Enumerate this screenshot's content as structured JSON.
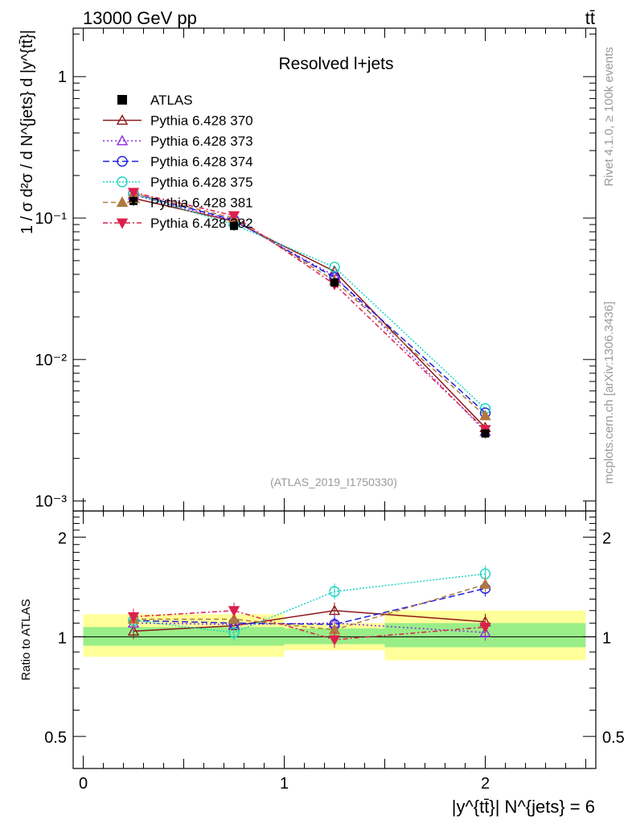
{
  "header": {
    "energy_label": "13000 GeV pp",
    "process_label": "tt̄",
    "panel_title": "Resolved l+jets",
    "side_rivet": "Rivet 4.1.0, ≥ 100k events",
    "side_mcplots": "mcplots.cern.ch [arXiv:1306.3436]",
    "analysis_id": "(ATLAS_2019_I1750330)"
  },
  "axes": {
    "ylabel_main": "1 / σ d²σ / d N^{jets} d |y^{tt̄}|",
    "ylabel_ratio": "Ratio to ATLAS",
    "xlabel": "|y^{tt̄}| N^{jets} = 6",
    "main_ticks": [
      "10⁻³",
      "10⁻²",
      "10⁻¹",
      "1"
    ],
    "ratio_ticks": [
      "0.5",
      "1",
      "2"
    ],
    "x_ticks": [
      "0",
      "1",
      "2"
    ]
  },
  "chart_data": {
    "type": "line",
    "x_label": "|y^{tt̄}| N^{jets} = 6",
    "y_scale": "log",
    "xlim": [
      -0.05,
      2.55
    ],
    "ylim": [
      0.00085,
      2.2
    ],
    "ratio_ylim": [
      0.4,
      2.4
    ],
    "bin_edges": [
      0,
      0.5,
      1.0,
      1.5,
      2.5
    ],
    "x": [
      0.25,
      0.75,
      1.25,
      2.0
    ],
    "reference": {
      "name": "ATLAS",
      "values": [
        0.132,
        0.088,
        0.035,
        0.003
      ],
      "ratio_band_inner": [
        [
          0.94,
          1.07
        ],
        [
          0.94,
          1.07
        ],
        [
          0.95,
          1.06
        ],
        [
          0.93,
          1.1
        ]
      ],
      "ratio_band_outer": [
        [
          0.87,
          1.17
        ],
        [
          0.87,
          1.17
        ],
        [
          0.91,
          1.1
        ],
        [
          0.85,
          1.2
        ]
      ]
    },
    "series": [
      {
        "name": "Pythia 6.428 370",
        "color": "#8b1a1a",
        "dash": "",
        "marker": "triangle-up-open",
        "values": [
          0.138,
          0.095,
          0.042,
          0.0033
        ],
        "ratio": [
          1.04,
          1.08,
          1.2,
          1.11
        ]
      },
      {
        "name": "Pythia 6.428 373",
        "color": "#8a2be2",
        "dash": "2,3",
        "marker": "triangle-up-open",
        "values": [
          0.145,
          0.096,
          0.039,
          0.0031
        ],
        "ratio": [
          1.1,
          1.09,
          1.1,
          1.03
        ]
      },
      {
        "name": "Pythia 6.428 374",
        "color": "#1f1fdd",
        "dash": "8,4",
        "marker": "circle-open",
        "values": [
          0.149,
          0.097,
          0.038,
          0.0042
        ],
        "ratio": [
          1.12,
          1.1,
          1.09,
          1.4
        ]
      },
      {
        "name": "Pythia 6.428 375",
        "color": "#19d4c4",
        "dash": "2,2",
        "marker": "circle-open",
        "values": [
          0.148,
          0.09,
          0.045,
          0.0045
        ],
        "ratio": [
          1.12,
          1.03,
          1.37,
          1.55
        ]
      },
      {
        "name": "Pythia 6.428 381",
        "color": "#b07840",
        "dash": "6,4",
        "marker": "triangle-up-filled",
        "values": [
          0.149,
          0.1,
          0.036,
          0.004
        ],
        "ratio": [
          1.13,
          1.13,
          1.05,
          1.44
        ]
      },
      {
        "name": "Pythia 6.428 382",
        "color": "#dc1f4c",
        "dash": "6,3,2,3",
        "marker": "triangle-down-filled",
        "values": [
          0.152,
          0.104,
          0.034,
          0.0032
        ],
        "ratio": [
          1.15,
          1.2,
          0.98,
          1.07
        ]
      }
    ]
  }
}
